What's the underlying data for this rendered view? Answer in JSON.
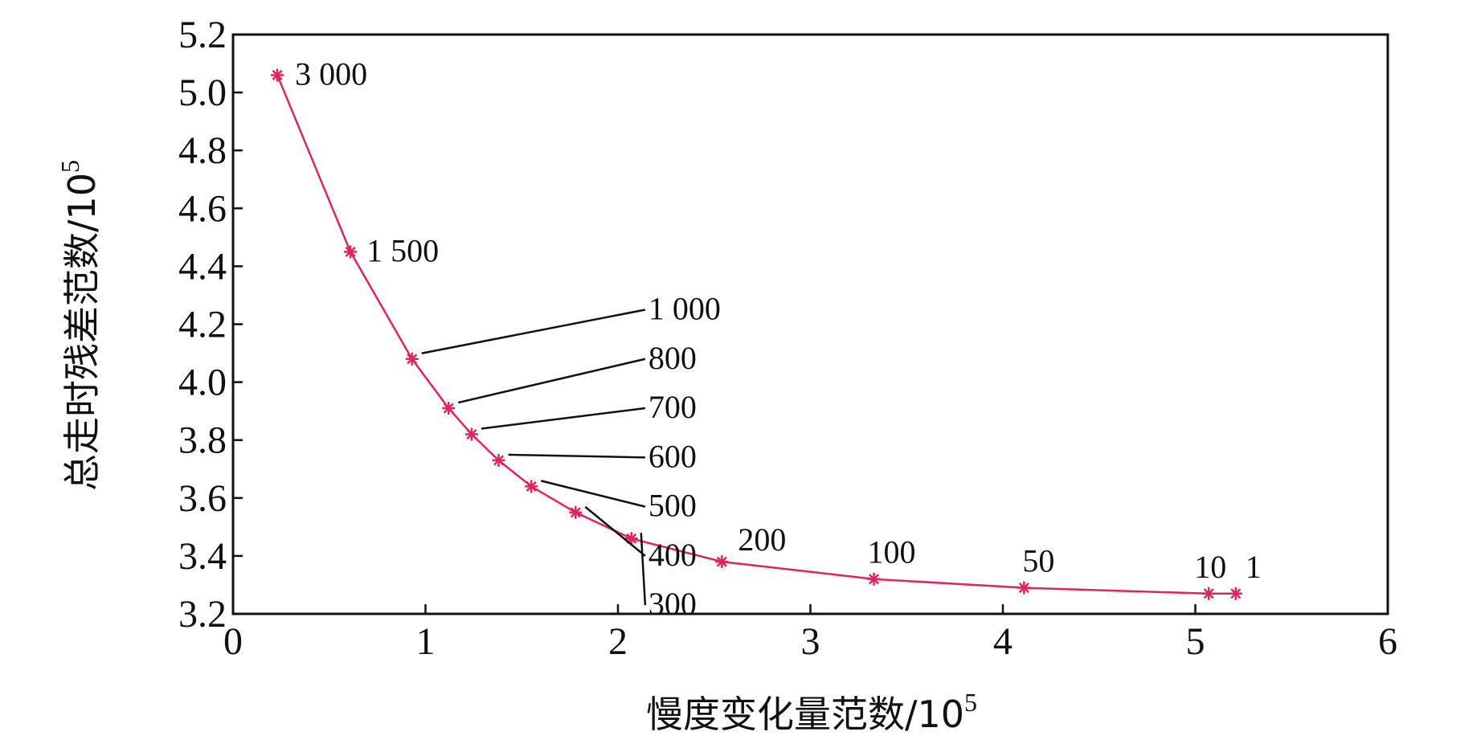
{
  "chart_data": {
    "type": "line",
    "title": "",
    "xlabel": "慢度变化量范数/10",
    "xlabel_exponent": "5",
    "ylabel": "总走时残差范数/10",
    "ylabel_exponent": "5",
    "xlim": [
      0,
      6
    ],
    "ylim": [
      3.2,
      5.2
    ],
    "x_ticks": [
      "0",
      "1",
      "2",
      "3",
      "4",
      "5",
      "6"
    ],
    "y_ticks": [
      "3.2",
      "3.4",
      "3.6",
      "3.8",
      "4.0",
      "4.2",
      "4.4",
      "4.6",
      "4.8",
      "5.0",
      "5.2"
    ],
    "grid": false,
    "legend": "none",
    "line_color": "#e0245e",
    "marker": "asterisk",
    "series": [
      {
        "points": [
          {
            "x": 0.23,
            "y": 5.06,
            "label": "3 000"
          },
          {
            "x": 0.61,
            "y": 4.45,
            "label": "1 500"
          },
          {
            "x": 0.93,
            "y": 4.08,
            "label": "1 000"
          },
          {
            "x": 1.12,
            "y": 3.91,
            "label": "800"
          },
          {
            "x": 1.24,
            "y": 3.82,
            "label": "700"
          },
          {
            "x": 1.38,
            "y": 3.73,
            "label": "600"
          },
          {
            "x": 1.55,
            "y": 3.64,
            "label": "500"
          },
          {
            "x": 1.78,
            "y": 3.55,
            "label": "400"
          },
          {
            "x": 2.07,
            "y": 3.46,
            "label": "300"
          },
          {
            "x": 2.54,
            "y": 3.38,
            "label": "200"
          },
          {
            "x": 3.33,
            "y": 3.32,
            "label": "100"
          },
          {
            "x": 4.11,
            "y": 3.29,
            "label": "50"
          },
          {
            "x": 5.07,
            "y": 3.27,
            "label": "10"
          },
          {
            "x": 5.21,
            "y": 3.27,
            "label": "1"
          }
        ]
      }
    ]
  }
}
